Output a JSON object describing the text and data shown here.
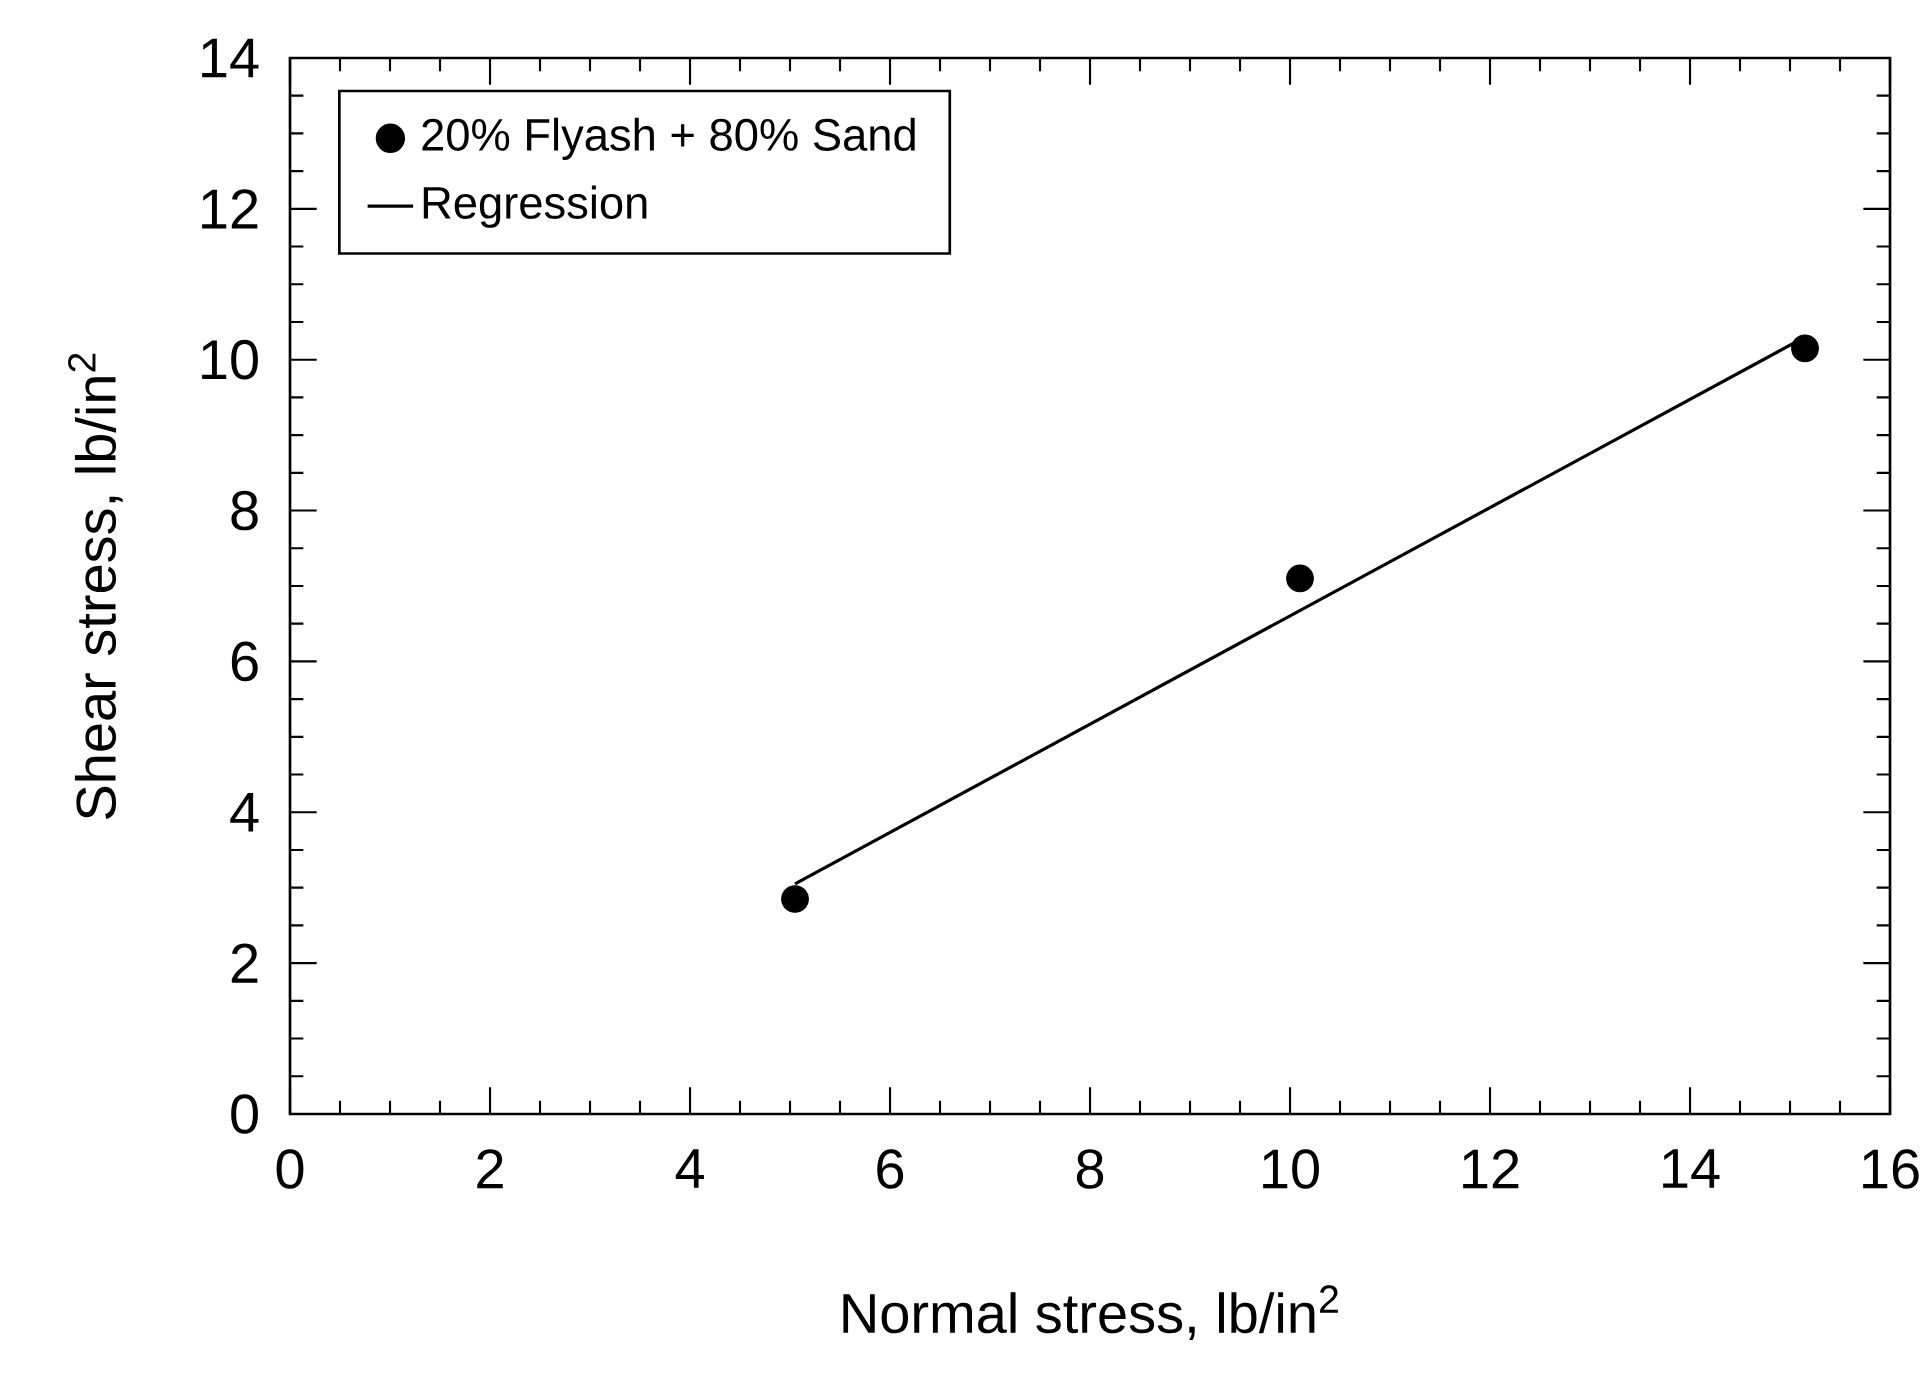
{
  "chart_data": {
    "type": "scatter",
    "xlabel": "Normal stress, lb/in$^{2}$",
    "ylabel": "Shear stress, lb/in$^{2}$",
    "xlim": [
      0,
      16
    ],
    "ylim": [
      0,
      14
    ],
    "xticks": [
      0,
      2,
      4,
      6,
      8,
      10,
      12,
      14,
      16
    ],
    "yticks": [
      0,
      2,
      4,
      6,
      8,
      10,
      12,
      14
    ],
    "legend": "top left",
    "series": [
      {
        "name": "20% Flyash + 80% Sand",
        "marker": "circle",
        "color": "#000000",
        "x": [
          5.05,
          10.1,
          15.15
        ],
        "values": [
          2.85,
          7.1,
          10.15
        ]
      },
      {
        "name": "Regression",
        "type": "line",
        "line_style": "solid",
        "color": "#000000",
        "x": [
          5.05,
          15.15
        ],
        "values": [
          3.05,
          10.3
        ]
      }
    ]
  }
}
